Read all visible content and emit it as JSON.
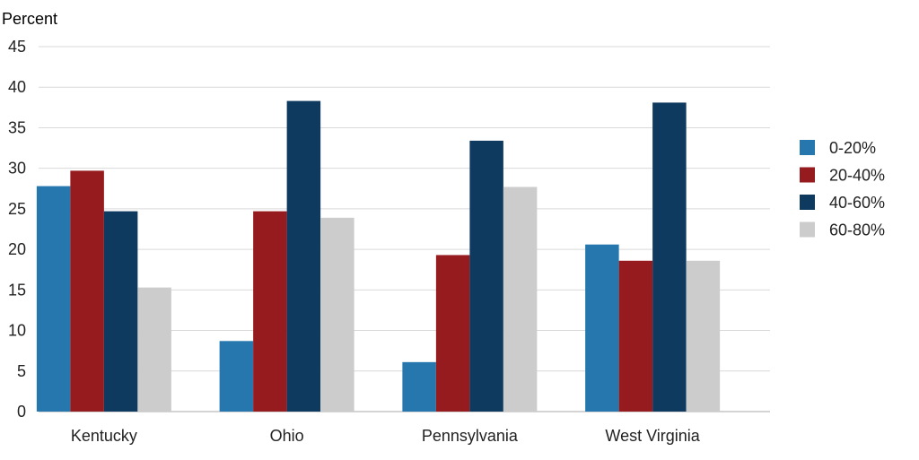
{
  "chart_data": {
    "type": "bar",
    "ylabel": "Percent",
    "ylim": [
      0,
      45
    ],
    "yticks": [
      0,
      5,
      10,
      15,
      20,
      25,
      30,
      35,
      40,
      45
    ],
    "categories": [
      "Kentucky",
      "Ohio",
      "Pennsylvania",
      "West Virginia"
    ],
    "series": [
      {
        "name": "0-20%",
        "color": "#2677ad",
        "values": [
          27.8,
          8.7,
          6.1,
          20.6
        ]
      },
      {
        "name": "20-40%",
        "color": "#961b1f",
        "values": [
          29.7,
          24.7,
          19.3,
          18.6
        ]
      },
      {
        "name": "40-60%",
        "color": "#0e3a60",
        "values": [
          24.7,
          38.3,
          33.4,
          38.1
        ]
      },
      {
        "name": "60-80%",
        "color": "#cccccc",
        "values": [
          15.3,
          23.9,
          27.7,
          18.6
        ]
      }
    ],
    "grid": true,
    "legend_position": "right"
  }
}
